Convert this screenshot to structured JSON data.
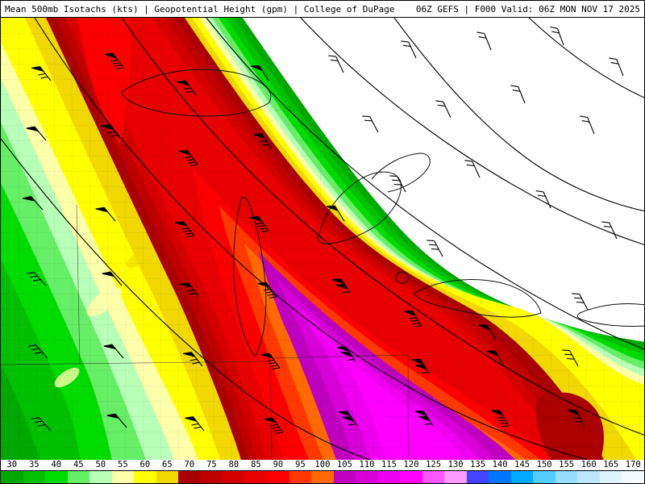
{
  "header": {
    "left": "Mean 500mb Isotachs (kts) | Geopotential Height (gpm) | College of DuPage",
    "right": "06Z GEFS | F000 Valid: 06Z MON NOV 17 2025"
  },
  "chart_data": {
    "type": "heatmap",
    "title": "Mean 500mb Isotachs (kts)",
    "contour_overlay": "Geopotential Height (gpm)",
    "source": "College of DuPage",
    "model_run": "06Z GEFS",
    "forecast_hour": "F000",
    "valid_time": "06Z MON NOV 17 2025",
    "units": "kts",
    "symbols": "wind barbs (black, flags toward northwest)",
    "geography": "Great Lakes region with lake outlines, state and county borders",
    "legend": {
      "position": "bottom",
      "ticks": [
        {
          "label": "30",
          "color": "#00a800"
        },
        {
          "label": "35",
          "color": "#00c000"
        },
        {
          "label": "40",
          "color": "#00dc00"
        },
        {
          "label": "45",
          "color": "#66ee66"
        },
        {
          "label": "50",
          "color": "#b8ffb8"
        },
        {
          "label": "55",
          "color": "#ffffaa"
        },
        {
          "label": "60",
          "color": "#ffff00"
        },
        {
          "label": "65",
          "color": "#f0d800"
        },
        {
          "label": "70",
          "color": "#aa0000"
        },
        {
          "label": "75",
          "color": "#c00000"
        },
        {
          "label": "80",
          "color": "#d40000"
        },
        {
          "label": "85",
          "color": "#e80000"
        },
        {
          "label": "90",
          "color": "#fc0000"
        },
        {
          "label": "95",
          "color": "#ff3800"
        },
        {
          "label": "100",
          "color": "#ff6a00"
        },
        {
          "label": "105",
          "color": "#c000c0"
        },
        {
          "label": "110",
          "color": "#d800d8"
        },
        {
          "label": "115",
          "color": "#f000f0"
        },
        {
          "label": "120",
          "color": "#ff00ff"
        },
        {
          "label": "125",
          "color": "#ff55ff"
        },
        {
          "label": "130",
          "color": "#ff9aff"
        },
        {
          "label": "135",
          "color": "#4444ff"
        },
        {
          "label": "140",
          "color": "#0077ff"
        },
        {
          "label": "145",
          "color": "#00aaff"
        },
        {
          "label": "150",
          "color": "#55ccff"
        },
        {
          "label": "155",
          "color": "#99ddff"
        },
        {
          "label": "160",
          "color": "#bbe8ff"
        },
        {
          "label": "165",
          "color": "#ddf4ff"
        },
        {
          "label": "170",
          "color": "#f4fbff"
        }
      ]
    },
    "features": [
      "NW-SE oriented jet streak stretching across the Great Lakes region",
      "primary wind speed maximum 120+ kts (bright magenta core) in lower center",
      "secondary 90-95 kt streak at upper left edge",
      "winds below 30 kts (unshaded white) over upper right quadrant",
      "speeds taper to 30-45 kts in lower left corner"
    ]
  }
}
